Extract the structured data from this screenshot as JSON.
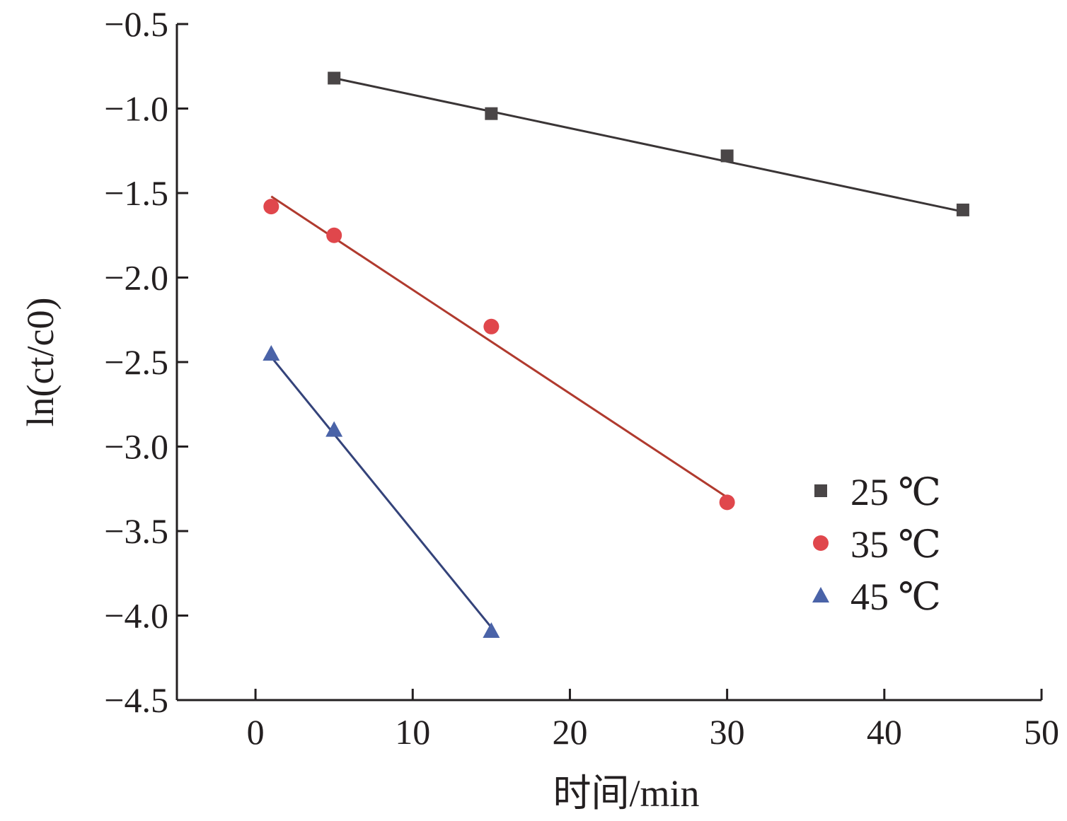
{
  "chart_data": {
    "type": "scatter",
    "xlabel": "时间/min",
    "ylabel": "ln(ct/c0)",
    "xlim": [
      -5,
      50
    ],
    "ylim": [
      -4.5,
      -0.5
    ],
    "xticks": [
      0,
      10,
      20,
      30,
      40,
      50
    ],
    "yticks": [
      -0.5,
      -1.0,
      -1.5,
      -2.0,
      -2.5,
      -3.0,
      -3.5,
      -4.0,
      -4.5
    ],
    "xtick_labels": [
      "0",
      "10",
      "20",
      "30",
      "40",
      "50"
    ],
    "ytick_labels": [
      "−0.5",
      "−1.0",
      "−1.5",
      "−2.0",
      "−2.5",
      "−3.0",
      "−3.5",
      "−4.0",
      "−4.5"
    ],
    "grid": false,
    "legend_position": "right",
    "series": [
      {
        "name": "25 ℃",
        "marker": "square",
        "color": "#4a4647",
        "line_color": "#3a3536",
        "x": [
          5,
          15,
          30,
          45
        ],
        "y": [
          -0.82,
          -1.03,
          -1.28,
          -1.6
        ],
        "fit": {
          "x": [
            5,
            45
          ],
          "y": [
            -0.82,
            -1.61
          ]
        }
      },
      {
        "name": "35 ℃",
        "marker": "circle",
        "color": "#e0474c",
        "line_color": "#b03a2e",
        "x": [
          1,
          5,
          15,
          30
        ],
        "y": [
          -1.58,
          -1.75,
          -2.29,
          -3.33
        ],
        "fit": {
          "x": [
            1,
            30
          ],
          "y": [
            -1.52,
            -3.3
          ]
        }
      },
      {
        "name": "45 ℃",
        "marker": "triangle",
        "color": "#4a63a8",
        "line_color": "#34437a",
        "x": [
          1,
          5,
          15
        ],
        "y": [
          -2.45,
          -2.9,
          -4.09
        ],
        "fit": {
          "x": [
            1,
            15
          ],
          "y": [
            -2.47,
            -4.07
          ]
        }
      }
    ]
  }
}
